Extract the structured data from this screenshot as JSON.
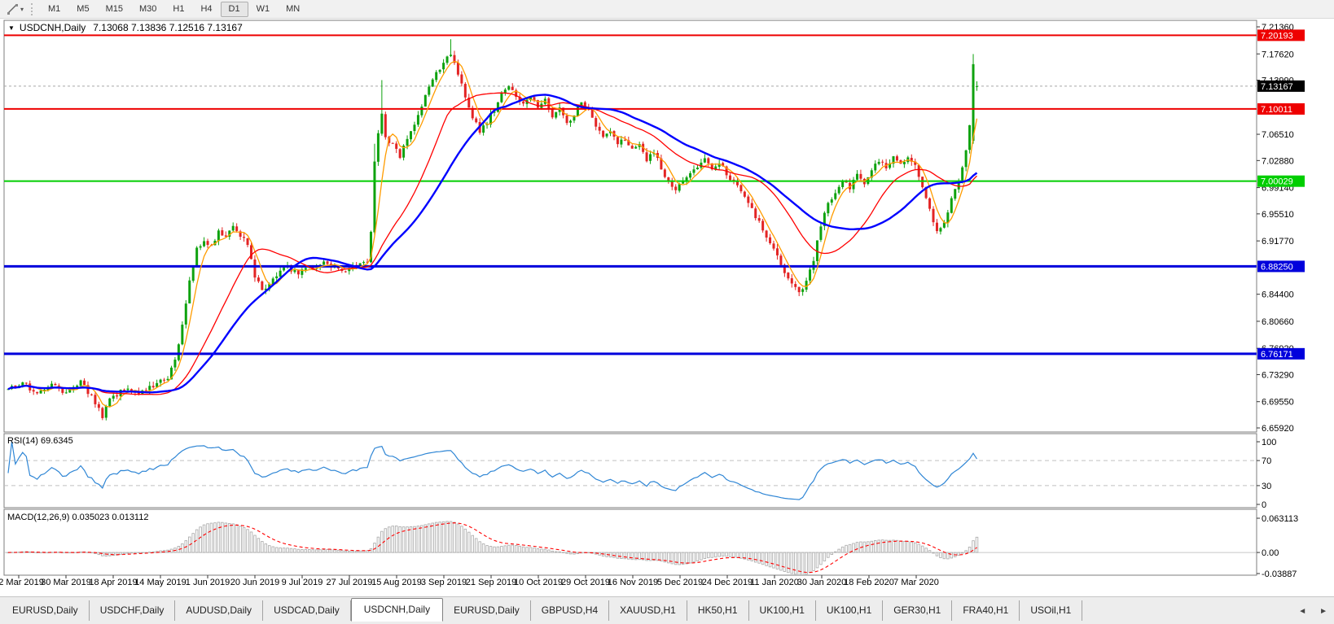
{
  "toolbar": {
    "timeframes": [
      "M1",
      "M5",
      "M15",
      "M30",
      "H1",
      "H4",
      "D1",
      "W1",
      "MN"
    ],
    "active_timeframe": "D1"
  },
  "icons": {
    "chevron_down": "▾",
    "collapse_triangle": "▼",
    "scroll_left": "◄",
    "scroll_right": "►"
  },
  "chart_header": {
    "symbol_title": "USDCNH,Daily",
    "ohlc_values": "7.13068 7.13836 7.12516 7.13167"
  },
  "indicator_labels": {
    "rsi": "RSI(14) 69.6345",
    "macd": "MACD(12,26,9) 0.035023 0.013112"
  },
  "chart_data": {
    "type": "candlestick",
    "symbol": "USDCNH",
    "timeframe": "Daily",
    "current_candle": {
      "open": 7.13068,
      "high": 7.13836,
      "low": 7.12516,
      "close": 7.13167
    },
    "colors": {
      "bull": "#0ea20e",
      "bear": "#e32424",
      "ma_fast": "#ff9c00",
      "ma_mid": "#ff0000",
      "ma_slow": "#0000ff",
      "rsi_line": "#2f86d5",
      "rsi_level": "#c0c0c0",
      "macd_hist": "#b0b0b0",
      "macd_signal": "#ff0000",
      "current_price_line": "#a8a8a8",
      "current_price_badge": "#000000",
      "pane_border": "#7d7d7d"
    },
    "y_axis": {
      "min": 6.6592,
      "max": 7.2136,
      "ticks": [
        "7.21360",
        "7.17620",
        "7.13990",
        "7.06510",
        "7.02880",
        "6.99140",
        "6.95510",
        "6.91770",
        "6.84400",
        "6.80660",
        "6.76920",
        "6.73290",
        "6.69550",
        "6.65920"
      ]
    },
    "x_labels": [
      "12 Mar 2019",
      "30 Mar 2019",
      "18 Apr 2019",
      "14 May 2019",
      "1 Jun 2019",
      "20 Jun 2019",
      "9 Jul 2019",
      "27 Jul 2019",
      "15 Aug 2019",
      "3 Sep 2019",
      "21 Sep 2019",
      "10 Oct 2019",
      "29 Oct 2019",
      "16 Nov 2019",
      "5 Dec 2019",
      "24 Dec 2019",
      "11 Jan 2020",
      "30 Jan 2020",
      "18 Feb 2020",
      "7 Mar 2020"
    ],
    "hlines": [
      {
        "price": 7.20193,
        "label": "7.20193",
        "color": "#ee0000",
        "width": 2
      },
      {
        "price": 7.10011,
        "label": "7.10011",
        "color": "#ee0000",
        "width": 2
      },
      {
        "price": 7.00029,
        "label": "7.00029",
        "color": "#00ce00",
        "width": 2
      },
      {
        "price": 6.8825,
        "label": "6.88250",
        "color": "#0000dc",
        "width": 3
      },
      {
        "price": 6.76171,
        "label": "6.76171",
        "color": "#0000dc",
        "width": 3
      }
    ],
    "current_price_label": "7.13167",
    "candle_count": 268,
    "price_path": [
      [
        0,
        6.712
      ],
      [
        4,
        6.722
      ],
      [
        8,
        6.705
      ],
      [
        12,
        6.718
      ],
      [
        16,
        6.708
      ],
      [
        20,
        6.722
      ],
      [
        24,
        6.695
      ],
      [
        26,
        6.676
      ],
      [
        28,
        6.7
      ],
      [
        32,
        6.712
      ],
      [
        36,
        6.706
      ],
      [
        40,
        6.718
      ],
      [
        44,
        6.728
      ],
      [
        46,
        6.755
      ],
      [
        48,
        6.8
      ],
      [
        50,
        6.86
      ],
      [
        52,
        6.905
      ],
      [
        54,
        6.92
      ],
      [
        56,
        6.91
      ],
      [
        58,
        6.93
      ],
      [
        60,
        6.922
      ],
      [
        62,
        6.938
      ],
      [
        64,
        6.925
      ],
      [
        66,
        6.912
      ],
      [
        68,
        6.87
      ],
      [
        70,
        6.848
      ],
      [
        72,
        6.86
      ],
      [
        74,
        6.872
      ],
      [
        76,
        6.882
      ],
      [
        80,
        6.874
      ],
      [
        84,
        6.882
      ],
      [
        88,
        6.887
      ],
      [
        92,
        6.876
      ],
      [
        96,
        6.882
      ],
      [
        99,
        6.89
      ],
      [
        100,
        6.93
      ],
      [
        101,
        7.03
      ],
      [
        102,
        7.065
      ],
      [
        103,
        7.095
      ],
      [
        104,
        7.06
      ],
      [
        106,
        7.05
      ],
      [
        108,
        7.035
      ],
      [
        110,
        7.06
      ],
      [
        112,
        7.08
      ],
      [
        114,
        7.105
      ],
      [
        116,
        7.13
      ],
      [
        118,
        7.15
      ],
      [
        120,
        7.162
      ],
      [
        122,
        7.178
      ],
      [
        124,
        7.15
      ],
      [
        126,
        7.118
      ],
      [
        128,
        7.09
      ],
      [
        130,
        7.068
      ],
      [
        132,
        7.082
      ],
      [
        134,
        7.1
      ],
      [
        136,
        7.12
      ],
      [
        138,
        7.13
      ],
      [
        140,
        7.118
      ],
      [
        142,
        7.108
      ],
      [
        144,
        7.12
      ],
      [
        146,
        7.102
      ],
      [
        148,
        7.112
      ],
      [
        150,
        7.092
      ],
      [
        152,
        7.1
      ],
      [
        154,
        7.082
      ],
      [
        156,
        7.092
      ],
      [
        158,
        7.108
      ],
      [
        160,
        7.098
      ],
      [
        162,
        7.078
      ],
      [
        164,
        7.06
      ],
      [
        166,
        7.07
      ],
      [
        168,
        7.052
      ],
      [
        170,
        7.06
      ],
      [
        172,
        7.042
      ],
      [
        174,
        7.05
      ],
      [
        176,
        7.03
      ],
      [
        178,
        7.04
      ],
      [
        180,
        7.018
      ],
      [
        182,
        7.0
      ],
      [
        184,
        6.99
      ],
      [
        186,
        7.002
      ],
      [
        188,
        7.012
      ],
      [
        190,
        7.022
      ],
      [
        192,
        7.03
      ],
      [
        194,
        7.018
      ],
      [
        196,
        7.028
      ],
      [
        198,
        7.012
      ],
      [
        200,
        6.998
      ],
      [
        202,
        6.985
      ],
      [
        204,
        6.97
      ],
      [
        206,
        6.952
      ],
      [
        208,
        6.935
      ],
      [
        210,
        6.916
      ],
      [
        212,
        6.896
      ],
      [
        214,
        6.874
      ],
      [
        216,
        6.858
      ],
      [
        218,
        6.845
      ],
      [
        220,
        6.862
      ],
      [
        222,
        6.892
      ],
      [
        224,
        6.94
      ],
      [
        226,
        6.968
      ],
      [
        228,
        6.985
      ],
      [
        230,
        7.0
      ],
      [
        232,
        6.992
      ],
      [
        234,
        7.008
      ],
      [
        236,
        6.998
      ],
      [
        238,
        7.015
      ],
      [
        240,
        7.028
      ],
      [
        242,
        7.018
      ],
      [
        244,
        7.032
      ],
      [
        246,
        7.022
      ],
      [
        248,
        7.035
      ],
      [
        250,
        7.02
      ],
      [
        252,
        6.995
      ],
      [
        254,
        6.96
      ],
      [
        256,
        6.932
      ],
      [
        258,
        6.945
      ],
      [
        260,
        6.975
      ],
      [
        262,
        7.0
      ],
      [
        264,
        7.04
      ],
      [
        265,
        7.075
      ],
      [
        266,
        7.162
      ],
      [
        267,
        7.13167
      ]
    ],
    "overrides": {
      "26": {
        "l": 6.67
      },
      "101": {
        "h": 7.052,
        "l": 6.924
      },
      "103": {
        "h": 7.14
      },
      "122": {
        "h": 7.1965
      },
      "266": {
        "o": 7.056,
        "h": 7.176,
        "l": 7.052,
        "c": 7.162
      },
      "267": {
        "o": 7.13068,
        "h": 7.13836,
        "l": 7.12516,
        "c": 7.13167
      }
    },
    "moving_averages": [
      {
        "name": "fast",
        "period": 5,
        "width": 1.3
      },
      {
        "name": "mid",
        "period": 21,
        "width": 1.3
      },
      {
        "name": "slow",
        "period": 34,
        "width": 2.4
      }
    ],
    "rsi": {
      "period": 14,
      "value": 69.6345,
      "axis_labels": [
        "100",
        "70",
        "30",
        "0"
      ],
      "levels": [
        70,
        30
      ]
    },
    "macd": {
      "fast": 12,
      "slow": 26,
      "signal": 9,
      "value": 0.035023,
      "signal_value": 0.013112,
      "axis_labels": [
        "0.063113",
        "0.00",
        "-0.03887"
      ],
      "axis_values": [
        0.063113,
        0.0,
        -0.03887
      ]
    }
  },
  "tabs": {
    "items": [
      "EURUSD,Daily",
      "USDCHF,Daily",
      "AUDUSD,Daily",
      "USDCAD,Daily",
      "USDCNH,Daily",
      "EURUSD,Daily",
      "GBPUSD,H4",
      "XAUUSD,H1",
      "HK50,H1",
      "UK100,H1",
      "UK100,H1",
      "GER30,H1",
      "FRA40,H1",
      "USOil,H1"
    ],
    "active_index": 4
  }
}
